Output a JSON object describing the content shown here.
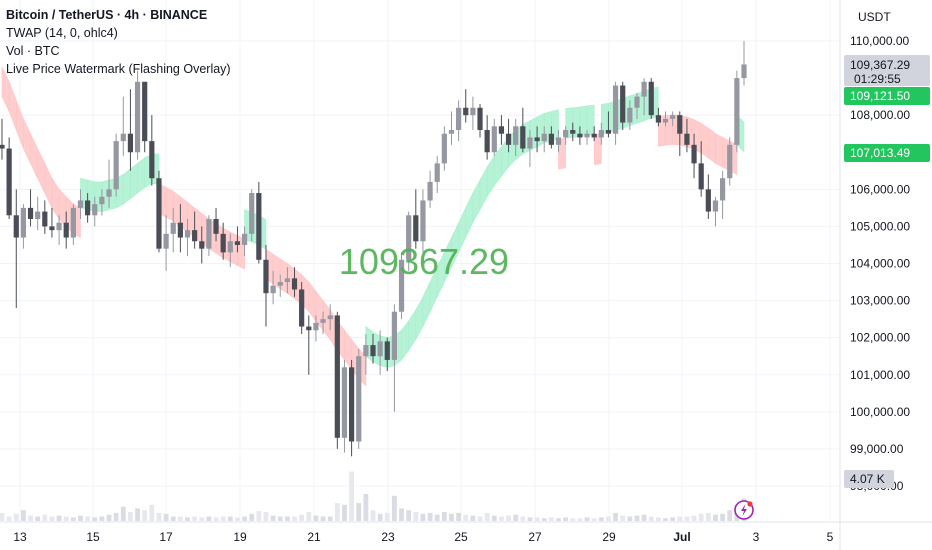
{
  "legend": {
    "title": "Bitcoin / TetherUS · 4h · BINANCE",
    "indicator_1": "TWAP (14, 0, ohlc4)",
    "indicator_2": "Vol · BTC",
    "indicator_3": "Live Price Watermark (Flashing Overlay)"
  },
  "watermark_text": "109367.29",
  "currency_label": "USDT",
  "price_tags": {
    "last_price": "109,367.29",
    "countdown": "01:29:55",
    "twap_upper": "109,121.50",
    "twap_lower": "107,013.49",
    "volume": "4.07 K"
  },
  "colors": {
    "up_candle": "#9598a1",
    "down_candle": "#4a4d56",
    "band_up": "#a8f0cf",
    "band_down": "#ffc4c4",
    "watermark": "#4caf50",
    "tag_green": "#22c55e",
    "tag_gray": "#d1d4dc"
  },
  "chart_data": {
    "type": "candlestick",
    "ylim": [
      97800,
      110800
    ],
    "y_ticks": [
      {
        "value": 110000,
        "label": "110,000.00"
      },
      {
        "value": 108000,
        "label": "108,000.00"
      },
      {
        "value": 106000,
        "label": "106,000.00"
      },
      {
        "value": 105000,
        "label": "105,000.00"
      },
      {
        "value": 104000,
        "label": "104,000.00"
      },
      {
        "value": 103000,
        "label": "103,000.00"
      },
      {
        "value": 102000,
        "label": "102,000.00"
      },
      {
        "value": 101000,
        "label": "101,000.00"
      },
      {
        "value": 100000,
        "label": "100,000.00"
      },
      {
        "value": 99000,
        "label": "99,000.00"
      },
      {
        "value": 98000,
        "label": "98,000.00"
      }
    ],
    "x_ticks": [
      "13",
      "15",
      "17",
      "19",
      "21",
      "23",
      "25",
      "27",
      "29",
      "Jul",
      "3",
      "5"
    ],
    "candles": [
      {
        "o": 107200,
        "h": 107900,
        "l": 106800,
        "c": 107100
      },
      {
        "o": 107100,
        "h": 107400,
        "l": 105200,
        "c": 105300
      },
      {
        "o": 105300,
        "h": 106000,
        "l": 102800,
        "c": 104700
      },
      {
        "o": 104700,
        "h": 105600,
        "l": 104400,
        "c": 105500
      },
      {
        "o": 105500,
        "h": 106000,
        "l": 105000,
        "c": 105200
      },
      {
        "o": 105200,
        "h": 105800,
        "l": 104900,
        "c": 105400
      },
      {
        "o": 105400,
        "h": 105700,
        "l": 104800,
        "c": 105000
      },
      {
        "o": 105000,
        "h": 105500,
        "l": 104700,
        "c": 104900
      },
      {
        "o": 104900,
        "h": 105300,
        "l": 104500,
        "c": 105100
      },
      {
        "o": 105100,
        "h": 105400,
        "l": 104400,
        "c": 104700
      },
      {
        "o": 104700,
        "h": 105600,
        "l": 104500,
        "c": 105500
      },
      {
        "o": 105500,
        "h": 106000,
        "l": 105200,
        "c": 105700
      },
      {
        "o": 105700,
        "h": 105900,
        "l": 105100,
        "c": 105300
      },
      {
        "o": 105300,
        "h": 105800,
        "l": 105000,
        "c": 105600
      },
      {
        "o": 105600,
        "h": 106000,
        "l": 105300,
        "c": 105800
      },
      {
        "o": 105800,
        "h": 106800,
        "l": 105500,
        "c": 106000
      },
      {
        "o": 106000,
        "h": 107500,
        "l": 105800,
        "c": 107300
      },
      {
        "o": 107300,
        "h": 108500,
        "l": 106900,
        "c": 107500
      },
      {
        "o": 107500,
        "h": 108700,
        "l": 106500,
        "c": 107000
      },
      {
        "o": 107000,
        "h": 109200,
        "l": 106800,
        "c": 108900
      },
      {
        "o": 108900,
        "h": 108900,
        "l": 107000,
        "c": 107300
      },
      {
        "o": 107300,
        "h": 108000,
        "l": 106100,
        "c": 106300
      },
      {
        "o": 106300,
        "h": 106500,
        "l": 104300,
        "c": 104400
      },
      {
        "o": 104400,
        "h": 105300,
        "l": 103800,
        "c": 104800
      },
      {
        "o": 104800,
        "h": 105500,
        "l": 104300,
        "c": 105100
      },
      {
        "o": 105100,
        "h": 105600,
        "l": 104300,
        "c": 104700
      },
      {
        "o": 104700,
        "h": 105200,
        "l": 104200,
        "c": 104900
      },
      {
        "o": 104900,
        "h": 105400,
        "l": 104400,
        "c": 104600
      },
      {
        "o": 104600,
        "h": 105000,
        "l": 104000,
        "c": 104400
      },
      {
        "o": 104400,
        "h": 105300,
        "l": 104200,
        "c": 105200
      },
      {
        "o": 105200,
        "h": 105500,
        "l": 104600,
        "c": 104800
      },
      {
        "o": 104800,
        "h": 105100,
        "l": 104100,
        "c": 104300
      },
      {
        "o": 104300,
        "h": 104800,
        "l": 103900,
        "c": 104600
      },
      {
        "o": 104600,
        "h": 105000,
        "l": 104300,
        "c": 104500
      },
      {
        "o": 104500,
        "h": 105000,
        "l": 104200,
        "c": 104800
      },
      {
        "o": 104800,
        "h": 106000,
        "l": 104600,
        "c": 105900
      },
      {
        "o": 105900,
        "h": 106200,
        "l": 104000,
        "c": 104100
      },
      {
        "o": 104100,
        "h": 104500,
        "l": 102300,
        "c": 103200
      },
      {
        "o": 103200,
        "h": 103800,
        "l": 102900,
        "c": 103400
      },
      {
        "o": 103400,
        "h": 103700,
        "l": 103100,
        "c": 103500
      },
      {
        "o": 103500,
        "h": 103900,
        "l": 103200,
        "c": 103600
      },
      {
        "o": 103600,
        "h": 103900,
        "l": 103100,
        "c": 103300
      },
      {
        "o": 103300,
        "h": 103500,
        "l": 102100,
        "c": 102300
      },
      {
        "o": 102300,
        "h": 102600,
        "l": 101000,
        "c": 102200
      },
      {
        "o": 102200,
        "h": 102600,
        "l": 101900,
        "c": 102400
      },
      {
        "o": 102400,
        "h": 102700,
        "l": 102100,
        "c": 102500
      },
      {
        "o": 102500,
        "h": 102900,
        "l": 102200,
        "c": 102600
      },
      {
        "o": 102600,
        "h": 102700,
        "l": 99000,
        "c": 99300
      },
      {
        "o": 99300,
        "h": 101400,
        "l": 98900,
        "c": 101200
      },
      {
        "o": 101200,
        "h": 101400,
        "l": 98800,
        "c": 99200
      },
      {
        "o": 99200,
        "h": 101700,
        "l": 99000,
        "c": 101500
      },
      {
        "o": 101500,
        "h": 102100,
        "l": 101000,
        "c": 101800
      },
      {
        "o": 101800,
        "h": 102100,
        "l": 101300,
        "c": 101500
      },
      {
        "o": 101500,
        "h": 102200,
        "l": 101000,
        "c": 101900
      },
      {
        "o": 101900,
        "h": 102000,
        "l": 101100,
        "c": 101400
      },
      {
        "o": 101400,
        "h": 102900,
        "l": 100000,
        "c": 102700
      },
      {
        "o": 102700,
        "h": 104300,
        "l": 102500,
        "c": 104100
      },
      {
        "o": 104100,
        "h": 105400,
        "l": 103800,
        "c": 105300
      },
      {
        "o": 105300,
        "h": 106000,
        "l": 104400,
        "c": 104600
      },
      {
        "o": 104600,
        "h": 106000,
        "l": 104300,
        "c": 105700
      },
      {
        "o": 105700,
        "h": 106500,
        "l": 105500,
        "c": 106200
      },
      {
        "o": 106200,
        "h": 106900,
        "l": 105900,
        "c": 106700
      },
      {
        "o": 106700,
        "h": 107700,
        "l": 106500,
        "c": 107500
      },
      {
        "o": 107500,
        "h": 108100,
        "l": 107200,
        "c": 107600
      },
      {
        "o": 107600,
        "h": 108400,
        "l": 107300,
        "c": 108200
      },
      {
        "o": 108200,
        "h": 108700,
        "l": 107800,
        "c": 108000
      },
      {
        "o": 108000,
        "h": 108500,
        "l": 107600,
        "c": 108200
      },
      {
        "o": 108200,
        "h": 108300,
        "l": 107400,
        "c": 107600
      },
      {
        "o": 107600,
        "h": 108000,
        "l": 106800,
        "c": 107000
      },
      {
        "o": 107000,
        "h": 107900,
        "l": 106900,
        "c": 107700
      },
      {
        "o": 107700,
        "h": 108000,
        "l": 107200,
        "c": 107500
      },
      {
        "o": 107500,
        "h": 107900,
        "l": 107000,
        "c": 107200
      },
      {
        "o": 107200,
        "h": 107900,
        "l": 106900,
        "c": 107700
      },
      {
        "o": 107700,
        "h": 108200,
        "l": 107000,
        "c": 107100
      },
      {
        "o": 107100,
        "h": 107600,
        "l": 106600,
        "c": 107400
      },
      {
        "o": 107400,
        "h": 107700,
        "l": 107000,
        "c": 107300
      },
      {
        "o": 107300,
        "h": 107700,
        "l": 107000,
        "c": 107500
      },
      {
        "o": 107500,
        "h": 107700,
        "l": 107100,
        "c": 107200
      },
      {
        "o": 107200,
        "h": 107600,
        "l": 107000,
        "c": 107400
      },
      {
        "o": 107400,
        "h": 107700,
        "l": 107200,
        "c": 107600
      },
      {
        "o": 107600,
        "h": 107800,
        "l": 107300,
        "c": 107500
      },
      {
        "o": 107500,
        "h": 107700,
        "l": 107200,
        "c": 107400
      },
      {
        "o": 107400,
        "h": 107600,
        "l": 107200,
        "c": 107500
      },
      {
        "o": 107500,
        "h": 107700,
        "l": 107300,
        "c": 107400
      },
      {
        "o": 107400,
        "h": 107800,
        "l": 107200,
        "c": 107600
      },
      {
        "o": 107600,
        "h": 108100,
        "l": 107400,
        "c": 107500
      },
      {
        "o": 107500,
        "h": 108900,
        "l": 107200,
        "c": 108800
      },
      {
        "o": 108800,
        "h": 108900,
        "l": 107600,
        "c": 107800
      },
      {
        "o": 107800,
        "h": 108400,
        "l": 107600,
        "c": 108200
      },
      {
        "o": 108200,
        "h": 108600,
        "l": 107900,
        "c": 108500
      },
      {
        "o": 108500,
        "h": 109000,
        "l": 108000,
        "c": 108900
      },
      {
        "o": 108900,
        "h": 109000,
        "l": 107900,
        "c": 108000
      },
      {
        "o": 108000,
        "h": 108200,
        "l": 107700,
        "c": 107800
      },
      {
        "o": 107800,
        "h": 108100,
        "l": 107700,
        "c": 107900
      },
      {
        "o": 107900,
        "h": 108100,
        "l": 107700,
        "c": 108000
      },
      {
        "o": 108000,
        "h": 108100,
        "l": 106900,
        "c": 107500
      },
      {
        "o": 107500,
        "h": 107900,
        "l": 107000,
        "c": 107200
      },
      {
        "o": 107200,
        "h": 107500,
        "l": 106300,
        "c": 106700
      },
      {
        "o": 106700,
        "h": 107300,
        "l": 105800,
        "c": 106000
      },
      {
        "o": 106000,
        "h": 106400,
        "l": 105200,
        "c": 105400
      },
      {
        "o": 105400,
        "h": 105800,
        "l": 105000,
        "c": 105700
      },
      {
        "o": 105700,
        "h": 106500,
        "l": 105200,
        "c": 106300
      },
      {
        "o": 106300,
        "h": 107400,
        "l": 106100,
        "c": 107200
      },
      {
        "o": 107200,
        "h": 109200,
        "l": 107000,
        "c": 109000
      },
      {
        "o": 109000,
        "h": 110000,
        "l": 108800,
        "c": 109367.29
      }
    ],
    "twap": [
      109300,
      108900,
      108400,
      107900,
      107500,
      107100,
      106700,
      106300,
      106000,
      105800,
      105600,
      105500,
      105450,
      105400,
      105400,
      105450,
      105500,
      105600,
      105750,
      105900,
      106050,
      106150,
      106150,
      106050,
      105950,
      105800,
      105650,
      105500,
      105350,
      105200,
      105080,
      104950,
      104850,
      104750,
      104650,
      104580,
      104500,
      104380,
      104250,
      104120,
      104000,
      103850,
      103700,
      103500,
      103250,
      103000,
      102750,
      102450,
      102200,
      101950,
      101700,
      101500,
      101350,
      101250,
      101200,
      101250,
      101400,
      101650,
      101950,
      102300,
      102700,
      103100,
      103500,
      103900,
      104300,
      104700,
      105100,
      105450,
      105800,
      106100,
      106350,
      106600,
      106800,
      106950,
      107050,
      107150,
      107250,
      107300,
      107350,
      107380,
      107400,
      107420,
      107450,
      107470,
      107490,
      107520,
      107580,
      107650,
      107720,
      107780,
      107850,
      107920,
      107960,
      107990,
      108010,
      108000,
      107950,
      107880,
      107780,
      107650,
      107500,
      107400,
      107300,
      107200,
      107013.49
    ],
    "band_offset": 800,
    "volumes": [
      0.09,
      0.05,
      0.08,
      0.12,
      0.06,
      0.05,
      0.07,
      0.05,
      0.06,
      0.05,
      0.04,
      0.06,
      0.05,
      0.04,
      0.05,
      0.07,
      0.09,
      0.16,
      0.1,
      0.14,
      0.12,
      0.18,
      0.09,
      0.08,
      0.05,
      0.05,
      0.04,
      0.05,
      0.04,
      0.05,
      0.04,
      0.05,
      0.05,
      0.04,
      0.05,
      0.08,
      0.11,
      0.1,
      0.06,
      0.05,
      0.05,
      0.05,
      0.07,
      0.1,
      0.06,
      0.05,
      0.05,
      0.2,
      0.18,
      0.55,
      0.2,
      0.3,
      0.12,
      0.08,
      0.09,
      0.28,
      0.14,
      0.12,
      0.1,
      0.08,
      0.09,
      0.07,
      0.1,
      0.08,
      0.09,
      0.07,
      0.06,
      0.05,
      0.09,
      0.06,
      0.05,
      0.06,
      0.07,
      0.05,
      0.04,
      0.04,
      0.03,
      0.04,
      0.03,
      0.04,
      0.03,
      0.03,
      0.04,
      0.03,
      0.04,
      0.05,
      0.09,
      0.06,
      0.05,
      0.06,
      0.07,
      0.05,
      0.04,
      0.03,
      0.04,
      0.05,
      0.05,
      0.06,
      0.08,
      0.09,
      0.07,
      0.08,
      0.12,
      0.18,
      0.25
    ]
  }
}
